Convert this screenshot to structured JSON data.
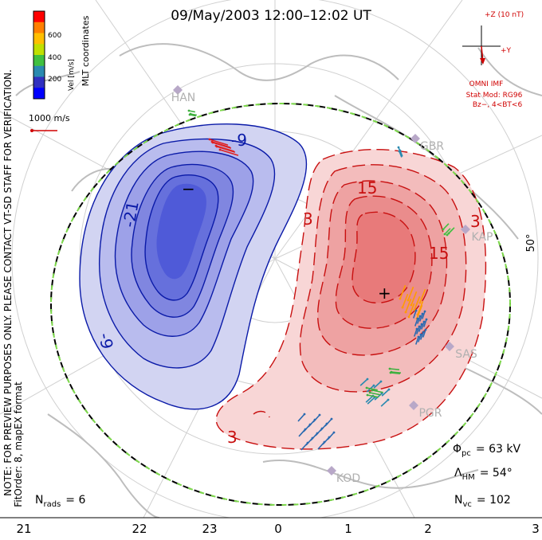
{
  "title": "09/May/2003 12:00–12:02 UT",
  "colorbar": {
    "label": "Vel [m/s]",
    "ticks": [
      "600",
      "400",
      "200"
    ],
    "colors": [
      "#ff0000",
      "#ff7f00",
      "#ffbf00",
      "#c0e000",
      "#40c040",
      "#2a8ab0",
      "#3030c0",
      "#0000ff"
    ]
  },
  "coords_label": "MLT coordinates",
  "scale_vector_label": "1000 m/s",
  "imf": {
    "plus_z": "+Z (10 nT)",
    "plus_y": "+Y",
    "source": "OMNI IMF",
    "model": "Stat Mod: RG96",
    "condition": "Bz−, 4<BT<6"
  },
  "notes": {
    "preview": "NOTE: FOR PREVIEW PURPOSES ONLY. PLEASE CONTACT VT-SD STAFF FOR VERIFICATION.",
    "fit": "FitOrder: 8, mapEX format"
  },
  "latitude_label": "50°",
  "stations": [
    "HAN",
    "GBR",
    "KAP",
    "SAS",
    "PGR",
    "KOD"
  ],
  "contour_labels": {
    "neg": [
      "-9",
      "-21",
      "-9"
    ],
    "pos": [
      "15",
      "3",
      "15",
      "3",
      "3"
    ]
  },
  "extrema": {
    "min": "−",
    "max": "+"
  },
  "stats": {
    "phi_pc_sym": "Φ",
    "phi_pc_sub": "pc",
    "phi_pc_val": "= 63 kV",
    "lambda_hm_sym": "Λ",
    "lambda_hm_sub": "HM",
    "lambda_hm_val": "= 54°",
    "n_vc_sym": "N",
    "n_vc_sub": "vc",
    "n_vc_val": "= 102",
    "n_rads_sym": "N",
    "n_rads_sub": "rads",
    "n_rads_val": "= 6"
  },
  "mlt_ticks": [
    "21",
    "22",
    "23",
    "0",
    "1",
    "2",
    "3"
  ],
  "colors": {
    "negative_fill": "#d2d4f2",
    "negative_line": "#0a1aa8",
    "positive_fill": "#f8d6d6",
    "positive_line": "#c81010",
    "land": "#c8c8c8",
    "hmb": "#000000"
  }
}
